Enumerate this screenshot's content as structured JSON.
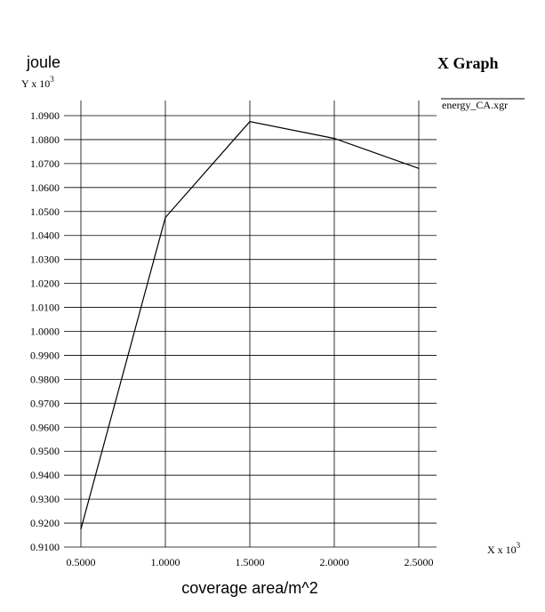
{
  "chart_data": {
    "type": "line",
    "title": "X Graph",
    "ylabel": "joule",
    "xlabel": "coverage area/m^2",
    "y_multiplier": {
      "prefix": "Y x 10",
      "exponent": "3"
    },
    "x_multiplier": {
      "prefix": "X x 10",
      "exponent": "3"
    },
    "xlim": [
      0.5,
      2.5
    ],
    "ylim": [
      0.91,
      1.09
    ],
    "x_ticks": [
      "0.5000",
      "1.0000",
      "1.5000",
      "2.0000",
      "2.5000"
    ],
    "y_ticks": [
      "0.9100",
      "0.9200",
      "0.9300",
      "0.9400",
      "0.9500",
      "0.9600",
      "0.9700",
      "0.9800",
      "0.9900",
      "1.0000",
      "1.0100",
      "1.0200",
      "1.0300",
      "1.0400",
      "1.0500",
      "1.0600",
      "1.0700",
      "1.0800",
      "1.0900"
    ],
    "grid": true,
    "legend_position": "top-right",
    "series": [
      {
        "name": "energy_CA.xgr",
        "color": "#000000",
        "x": [
          0.5,
          1.0,
          1.5,
          2.0,
          2.5
        ],
        "y": [
          0.9175,
          1.0475,
          1.0875,
          1.0805,
          1.068
        ]
      }
    ]
  }
}
